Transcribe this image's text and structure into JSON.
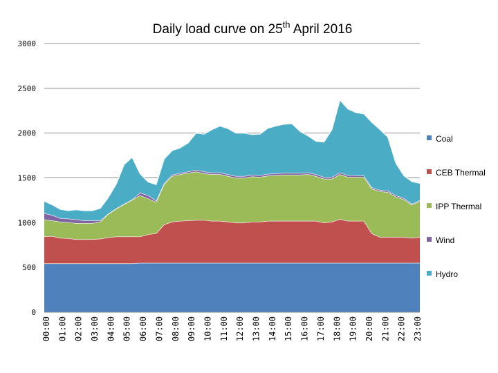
{
  "chart_data": {
    "type": "area",
    "stacked": true,
    "title": "Daily load curve on 25",
    "title_superscript": "th",
    "title_suffix": " April 2016",
    "xlabel": "",
    "ylabel": "",
    "ylim": [
      0,
      3000
    ],
    "yticks": [
      0,
      500,
      1000,
      1500,
      2000,
      2500,
      3000
    ],
    "grid": true,
    "legend_position": "right",
    "x": [
      "00:00",
      "00:30",
      "01:00",
      "01:30",
      "02:00",
      "02:30",
      "03:00",
      "03:30",
      "04:00",
      "04:30",
      "05:00",
      "05:30",
      "06:00",
      "06:30",
      "07:00",
      "07:30",
      "08:00",
      "08:30",
      "09:00",
      "09:30",
      "10:00",
      "10:30",
      "11:00",
      "11:30",
      "12:00",
      "12:30",
      "13:00",
      "13:30",
      "14:00",
      "14:30",
      "15:00",
      "15:30",
      "16:00",
      "16:30",
      "17:00",
      "17:30",
      "18:00",
      "18:30",
      "19:00",
      "19:30",
      "20:00",
      "20:30",
      "21:00",
      "21:30",
      "22:00",
      "22:30",
      "23:00",
      "23:30"
    ],
    "x_tick_labels": [
      "00:00",
      "01:00",
      "02:00",
      "03:00",
      "04:00",
      "05:00",
      "06:00",
      "07:00",
      "08:00",
      "09:00",
      "10:00",
      "11:00",
      "12:00",
      "13:00",
      "14:00",
      "15:00",
      "16:00",
      "17:00",
      "18:00",
      "19:00",
      "20:00",
      "21:00",
      "22:00",
      "23:00"
    ],
    "series": [
      {
        "name": "Coal",
        "color": "#4f81bd",
        "values": [
          545,
          545,
          545,
          545,
          545,
          545,
          545,
          545,
          545,
          545,
          545,
          545,
          550,
          550,
          550,
          550,
          550,
          550,
          550,
          550,
          550,
          550,
          550,
          550,
          550,
          550,
          550,
          550,
          550,
          550,
          550,
          550,
          550,
          550,
          550,
          550,
          550,
          550,
          550,
          550,
          550,
          550,
          550,
          550,
          550,
          550,
          550,
          550
        ]
      },
      {
        "name": "CEB Thermal",
        "color": "#c0504d",
        "values": [
          300,
          305,
          285,
          280,
          270,
          270,
          270,
          275,
          290,
          300,
          300,
          300,
          295,
          320,
          330,
          430,
          460,
          470,
          475,
          480,
          480,
          470,
          470,
          460,
          450,
          450,
          460,
          460,
          470,
          470,
          470,
          470,
          470,
          470,
          470,
          450,
          460,
          490,
          470,
          470,
          470,
          330,
          290,
          290,
          290,
          290,
          280,
          290
        ]
      },
      {
        "name": "IPP Thermal",
        "color": "#9bbb59",
        "values": [
          190,
          175,
          180,
          180,
          180,
          180,
          180,
          190,
          260,
          310,
          360,
          410,
          460,
          400,
          350,
          450,
          510,
          520,
          530,
          540,
          520,
          520,
          520,
          510,
          500,
          500,
          505,
          500,
          505,
          510,
          515,
          515,
          515,
          520,
          500,
          490,
          480,
          500,
          490,
          490,
          490,
          500,
          510,
          500,
          450,
          420,
          370,
          400
        ]
      },
      {
        "name": "Wind",
        "color": "#8064a2",
        "values": [
          70,
          60,
          40,
          40,
          40,
          30,
          30,
          15,
          5,
          5,
          5,
          5,
          30,
          35,
          15,
          10,
          15,
          15,
          15,
          20,
          20,
          20,
          20,
          20,
          20,
          20,
          20,
          20,
          20,
          20,
          20,
          20,
          20,
          20,
          20,
          20,
          20,
          20,
          20,
          20,
          15,
          15,
          15,
          15,
          15,
          15,
          10,
          10
        ]
      },
      {
        "name": "Hydro",
        "color": "#4bacc6",
        "values": [
          135,
          115,
          100,
          90,
          110,
          110,
          110,
          135,
          180,
          270,
          440,
          470,
          210,
          150,
          180,
          270,
          270,
          280,
          320,
          410,
          420,
          480,
          520,
          510,
          480,
          480,
          450,
          460,
          510,
          530,
          545,
          550,
          465,
          410,
          370,
          390,
          530,
          810,
          740,
          700,
          690,
          725,
          675,
          600,
          360,
          250,
          250,
          190
        ]
      }
    ]
  }
}
